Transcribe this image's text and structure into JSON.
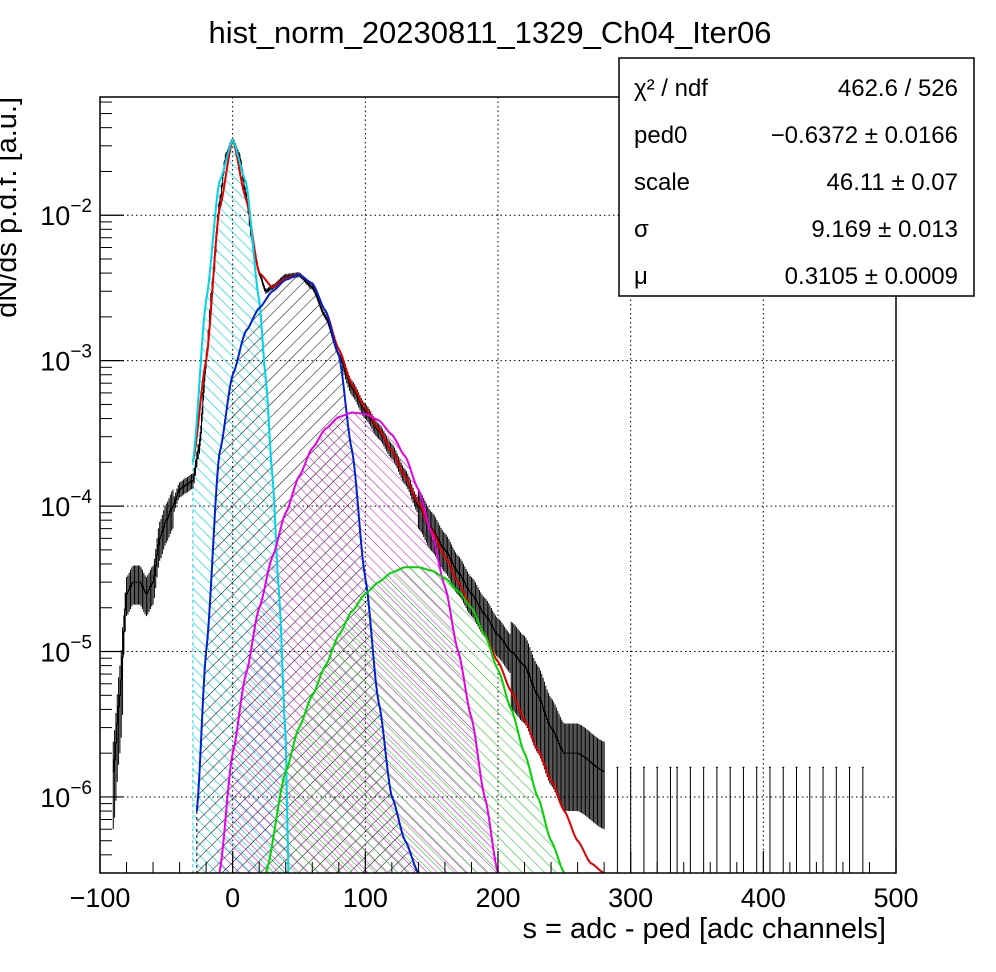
{
  "chart_data": {
    "type": "histogram",
    "title": "hist_norm_20230811_1329_Ch04_Iter06",
    "xlabel": "s = adc - ped [adc channels]",
    "ylabel": "dN/ds p.d.f. [a.u.]",
    "xlim": [
      -100,
      500
    ],
    "ylim": [
      3e-07,
      0.065
    ],
    "yscale": "log",
    "grid": true,
    "x_ticks": [
      -100,
      0,
      100,
      200,
      300,
      400,
      500
    ],
    "x_tick_labels": [
      "−100",
      "0",
      "100",
      "200",
      "300",
      "400",
      "500"
    ],
    "y_ticks": [
      {
        "value": 1e-06,
        "base": "10",
        "exp": "−6"
      },
      {
        "value": 1e-05,
        "base": "10",
        "exp": "−5"
      },
      {
        "value": 0.0001,
        "base": "10",
        "exp": "−4"
      },
      {
        "value": 0.001,
        "base": "10",
        "exp": "−3"
      },
      {
        "value": 0.01,
        "base": "10",
        "exp": "−2"
      }
    ],
    "stats_box": {
      "rows": [
        {
          "label": "χ² / ndf",
          "value": "462.6 / 526"
        },
        {
          "label": "ped0",
          "value": "−0.6372 ± 0.0166"
        },
        {
          "label": "scale",
          "value": "46.11 ± 0.07"
        },
        {
          "label": "σ",
          "value": "9.169 ± 0.013"
        },
        {
          "label": "μ",
          "value": "0.3105 ± 0.0009"
        }
      ]
    },
    "series": [
      {
        "role": "data histogram",
        "color": "#000000",
        "x": [
          -90,
          -85,
          -80,
          -75,
          -70,
          -65,
          -60,
          -55,
          -50,
          -45,
          -40,
          -35,
          -30,
          -25,
          -20,
          -15,
          -10,
          -5,
          0,
          5,
          10,
          15,
          20,
          25,
          30,
          40,
          50,
          60,
          70,
          80,
          90,
          100,
          110,
          120,
          130,
          140,
          150,
          160,
          170,
          180,
          190,
          200,
          210,
          220,
          230,
          240,
          250,
          260,
          280
        ],
        "y": [
          1.5e-06,
          5e-06,
          2.5e-05,
          3e-05,
          3e-05,
          2.5e-05,
          3e-05,
          6e-05,
          8e-05,
          0.0001,
          0.00013,
          0.00014,
          0.00015,
          0.00026,
          0.001,
          0.0035,
          0.012,
          0.026,
          0.033,
          0.026,
          0.014,
          0.0065,
          0.004,
          0.003,
          0.0032,
          0.0038,
          0.0039,
          0.0032,
          0.002,
          0.0011,
          0.00065,
          0.00045,
          0.00033,
          0.00024,
          0.00016,
          0.0001,
          7e-05,
          5e-05,
          3.5e-05,
          2.5e-05,
          1.8e-05,
          1.3e-05,
          1e-05,
          8e-06,
          5e-06,
          3e-06,
          2e-06,
          2e-06,
          1.5e-06
        ]
      },
      {
        "role": "total fit",
        "color": "#e00000",
        "x": [
          -30,
          -20,
          -10,
          0,
          10,
          20,
          30,
          40,
          50,
          60,
          70,
          80,
          90,
          100,
          110,
          120,
          130,
          140,
          150,
          160,
          170,
          180,
          190,
          200,
          210,
          220,
          230,
          240,
          250,
          260,
          270,
          280
        ],
        "y": [
          0.0002,
          0.001,
          0.011,
          0.033,
          0.013,
          0.004,
          0.0032,
          0.0037,
          0.0039,
          0.0034,
          0.0022,
          0.0012,
          0.00068,
          0.00047,
          0.00034,
          0.00024,
          0.00016,
          0.000105,
          6.8e-05,
          4.5e-05,
          3e-05,
          2e-05,
          1.3e-05,
          8.5e-06,
          5.3e-06,
          3.4e-06,
          2.1e-06,
          1.3e-06,
          8e-07,
          5e-07,
          3.5e-07,
          3e-07
        ]
      },
      {
        "role": "pedestal component",
        "color": "#00d4e6",
        "x": [
          -30,
          -20,
          -10,
          0,
          10,
          20,
          25,
          30,
          35,
          40,
          42
        ],
        "y": [
          0.0002,
          0.0026,
          0.017,
          0.033,
          0.017,
          0.0026,
          0.00075,
          0.00016,
          2.5e-05,
          2.5e-06,
          3e-07
        ]
      },
      {
        "role": "1 p.e. component",
        "color": "#0022cc",
        "x": [
          -27,
          -20,
          -10,
          0,
          10,
          20,
          30,
          40,
          50,
          60,
          70,
          80,
          90,
          100,
          110,
          120,
          130,
          140
        ],
        "y": [
          8e-07,
          1e-05,
          0.00023,
          0.0008,
          0.0016,
          0.0023,
          0.003,
          0.0036,
          0.0039,
          0.0034,
          0.0022,
          0.0011,
          0.00024,
          3.2e-05,
          4.5e-06,
          1e-06,
          5e-07,
          3e-07
        ]
      },
      {
        "role": "2 p.e. component",
        "color": "#e600e6",
        "x": [
          -10,
          0,
          10,
          20,
          30,
          40,
          50,
          60,
          70,
          80,
          90,
          100,
          110,
          120,
          130,
          140,
          150,
          160,
          170,
          180,
          190,
          200
        ],
        "y": [
          3e-07,
          2e-06,
          7e-06,
          2e-05,
          4.5e-05,
          9e-05,
          0.00016,
          0.00025,
          0.00034,
          0.00041,
          0.00044,
          0.00043,
          0.00039,
          0.00031,
          0.00022,
          0.00013,
          6.5e-05,
          2.8e-05,
          1e-05,
          3.5e-06,
          1e-06,
          3e-07
        ]
      },
      {
        "role": "3 p.e. component",
        "color": "#00d400",
        "x": [
          25,
          40,
          50,
          60,
          70,
          80,
          90,
          100,
          110,
          120,
          130,
          140,
          150,
          160,
          170,
          180,
          190,
          200,
          210,
          220,
          230,
          240,
          250
        ],
        "y": [
          3e-07,
          1.5e-06,
          3e-06,
          5e-06,
          8e-06,
          1.3e-05,
          1.9e-05,
          2.5e-05,
          3e-05,
          3.5e-05,
          3.8e-05,
          3.8e-05,
          3.6e-05,
          3.2e-05,
          2.6e-05,
          2e-05,
          1.3e-05,
          7.5e-06,
          4e-06,
          2e-06,
          1e-06,
          5e-07,
          3e-07
        ]
      }
    ]
  }
}
